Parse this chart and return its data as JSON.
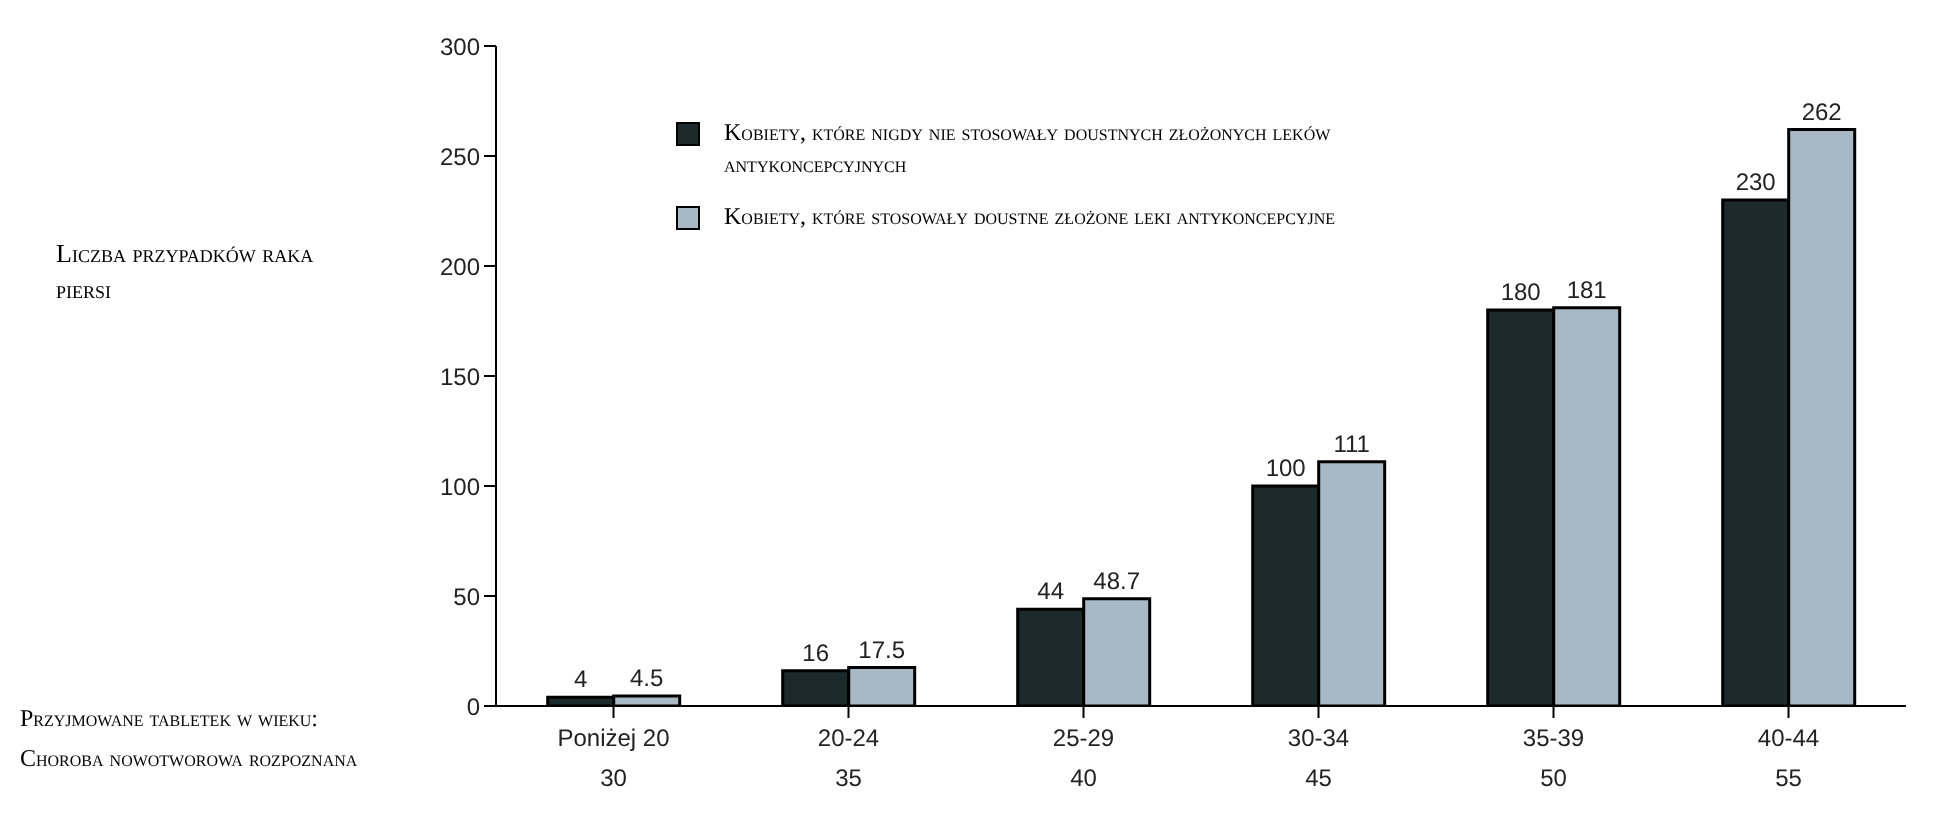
{
  "chart_data": {
    "type": "bar",
    "ylabel": "Liczba przypadków raka piersi",
    "categories": [
      "Poniżej 20\n30",
      "20-24\n35",
      "25-29\n40",
      "30-34\n45",
      "35-39\n50",
      "40-44\n55"
    ],
    "series": [
      {
        "name": "Kobiety, które nigdy nie stosowały doustnych złożonych leków antykoncepcyjnych",
        "color": "#1c2a2b",
        "values": [
          4,
          16,
          44,
          100,
          180,
          230
        ],
        "value_labels": [
          "4",
          "16",
          "44",
          "100",
          "180",
          "230"
        ]
      },
      {
        "name": "Kobiety, które stosowały doustne złożone leki antykoncepcyjne",
        "color": "#a8b8c4",
        "values": [
          4.5,
          17.5,
          48.7,
          111,
          181,
          262
        ],
        "value_labels": [
          "4.5",
          "17.5",
          "48.7",
          "111",
          "181",
          "262"
        ]
      }
    ],
    "ylim": [
      0,
      300
    ],
    "yticks": [
      0,
      50,
      100,
      150,
      200,
      250,
      300
    ],
    "legend": "top left",
    "annotations": [
      "Przyjmowane tabletek w wieku:",
      "Choroba nowotworowa rozpoznana"
    ]
  }
}
